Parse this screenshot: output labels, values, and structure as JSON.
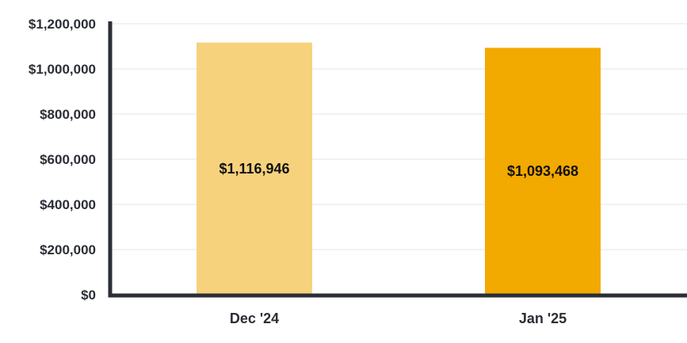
{
  "chart_data": {
    "type": "bar",
    "title": "",
    "xlabel": "",
    "ylabel": "",
    "categories": [
      "Dec '24",
      "Jan '25"
    ],
    "values": [
      1116946,
      1093468
    ],
    "data_labels": [
      "$1,116,946",
      "$1,093,468"
    ],
    "bar_colors": [
      "#f6d27d",
      "#f2a900"
    ],
    "ylim": [
      0,
      1200000
    ],
    "yticks": [
      0,
      200000,
      400000,
      600000,
      800000,
      1000000,
      1200000
    ],
    "ytick_labels": [
      "$0",
      "$200,000",
      "$400,000",
      "$600,000",
      "$800,000",
      "$1,000,000",
      "$1,200,000"
    ],
    "grid": true,
    "legend": "none",
    "axis_color": "#2b2e36"
  }
}
